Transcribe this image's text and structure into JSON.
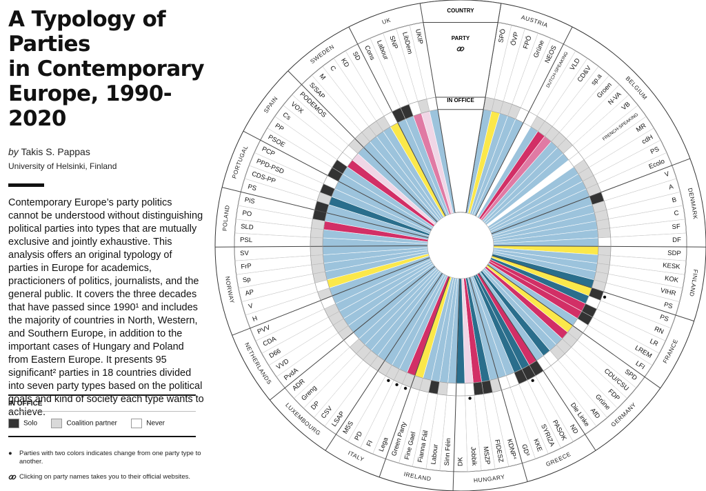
{
  "title": "A Typology of Parties\nin Contemporary\nEurope, 1990-2020",
  "byline": {
    "by": "by",
    "author": "Takis S. Pappas",
    "affiliation": "University of Helsinki, Finland"
  },
  "intro": "Contemporary Europe’s party politics cannot be understood without distinguishing political parties into types that are mutually exclusive and jointly exhaustive. This analysis offers an original typology of parties in Europe for academics, practicioners of politics, journalists, and the general public. It covers the three decades that have passed since 1990¹ and includes the majority of countries in North, Western, and Southern Europe, in addition to the important cases of Hungary and Poland from Eastern Europe. It presents 95 significant² parties in 18 countries divided into seven party types based on the political goals and kind of society each type wants to achieve.",
  "legend": {
    "title": "IN OFFICE",
    "items": [
      {
        "label": "Solo",
        "color": "#333333"
      },
      {
        "label": "Coalition partner",
        "color": "#d9d9d9"
      },
      {
        "label": "Never",
        "color": "#ffffff"
      }
    ]
  },
  "notes": [
    {
      "marker": "●",
      "text": "Parties with two colors indicates change from one party type to another."
    },
    {
      "marker": "link-icon",
      "text": "Clicking on party names takes you to their official websites."
    }
  ],
  "center_labels": {
    "country": "COUNTRY",
    "party": "PARTY",
    "office": "IN OFFICE"
  },
  "colors": {
    "blue": "#9cc3dc",
    "teal": "#2a6e8c",
    "yellow": "#fbe84a",
    "magenta": "#d22f66",
    "pink": "#e07aa4",
    "lightpink": "#f0d6e6",
    "solo": "#333333",
    "coalition": "#d9d9d9",
    "never": "#ffffff"
  },
  "countries": [
    {
      "name": "AUSTRIA",
      "parties": [
        {
          "name": "SPÖ",
          "type": "blue",
          "office": "coalition"
        },
        {
          "name": "ÖVP",
          "type": "yellow",
          "office": "coalition"
        },
        {
          "name": "FPÖ",
          "type": "blue",
          "office": "coalition"
        },
        {
          "name": "Grüne",
          "type": "blue",
          "office": "coalition"
        },
        {
          "name": "NEOS",
          "type": "blue",
          "office": "never"
        }
      ]
    },
    {
      "name": "BELGIUM",
      "parties": [
        {
          "name": "DUTCH-SPEAKING",
          "subheader": true
        },
        {
          "name": "VLD",
          "type": "blue",
          "office": "coalition"
        },
        {
          "name": "CD&V",
          "type": "magenta",
          "office": "coalition"
        },
        {
          "name": "sp.a",
          "type": "pink",
          "office": "coalition"
        },
        {
          "name": "Groen",
          "type": "blue",
          "office": "coalition"
        },
        {
          "name": "N-VA",
          "type": "blue",
          "office": "coalition"
        },
        {
          "name": "VB",
          "type": "blue",
          "office": "never"
        },
        {
          "name": "FRENCH-SPEAKING",
          "subheader": true
        },
        {
          "name": "MR",
          "type": "blue",
          "office": "coalition"
        },
        {
          "name": "cdH",
          "type": "blue",
          "office": "coalition"
        },
        {
          "name": "PS",
          "type": "blue",
          "office": "coalition"
        },
        {
          "name": "Ecolo",
          "type": "blue",
          "office": "coalition"
        }
      ]
    },
    {
      "name": "DENMARK",
      "parties": [
        {
          "name": "V",
          "type": "blue",
          "office": "solo"
        },
        {
          "name": "A",
          "type": "blue",
          "office": "coalition"
        },
        {
          "name": "B",
          "type": "blue",
          "office": "coalition"
        },
        {
          "name": "C",
          "type": "blue",
          "office": "coalition"
        },
        {
          "name": "SF",
          "type": "blue",
          "office": "coalition"
        },
        {
          "name": "DF",
          "type": "blue",
          "office": "never"
        }
      ]
    },
    {
      "name": "FINLAND",
      "parties": [
        {
          "name": "SDP",
          "type": "yellow",
          "office": "coalition"
        },
        {
          "name": "KESK",
          "type": "blue",
          "office": "coalition"
        },
        {
          "name": "KOK",
          "type": "blue",
          "office": "coalition"
        },
        {
          "name": "VIHR",
          "type": "blue",
          "office": "coalition"
        },
        {
          "name": "PS",
          "type": "teal",
          "office": "coalition"
        }
      ]
    },
    {
      "name": "FRANCE",
      "parties": [
        {
          "name": "PS",
          "type": "yellow",
          "office": "solo",
          "dot": true
        },
        {
          "name": "RN",
          "type": "teal",
          "office": "never"
        },
        {
          "name": "LR",
          "type": "magenta",
          "office": "solo"
        },
        {
          "name": "LREM",
          "type": "magenta",
          "office": "solo"
        },
        {
          "name": "LFI",
          "type": "blue",
          "office": "never"
        }
      ]
    },
    {
      "name": "GERMANY",
      "parties": [
        {
          "name": "SPD",
          "type": "yellow",
          "office": "coalition"
        },
        {
          "name": "CDU/CSU",
          "type": "magenta",
          "office": "coalition"
        },
        {
          "name": "FDP",
          "type": "blue",
          "office": "coalition"
        },
        {
          "name": "Grüne",
          "type": "blue",
          "office": "coalition"
        },
        {
          "name": "AfD",
          "type": "teal",
          "office": "never"
        },
        {
          "name": "Die Linke",
          "type": "blue",
          "office": "never"
        }
      ]
    },
    {
      "name": "GREECE",
      "parties": [
        {
          "name": "ND",
          "type": "magenta",
          "office": "solo"
        },
        {
          "name": "PASOK",
          "type": "teal",
          "office": "solo",
          "dot": true
        },
        {
          "name": "SYRIZA",
          "type": "teal",
          "office": "solo"
        },
        {
          "name": "KKE",
          "type": "blue",
          "office": "never"
        },
        {
          "name": "GD³",
          "type": "blue",
          "office": "never"
        }
      ]
    },
    {
      "name": "HUNGARY",
      "parties": [
        {
          "name": "KDNP⁴",
          "type": "blue",
          "office": "coalition"
        },
        {
          "name": "FIDESZ",
          "type": "teal",
          "office": "solo"
        },
        {
          "name": "MSZP",
          "type": "magenta",
          "office": "solo"
        },
        {
          "name": "Jobbik",
          "type": "lightpink",
          "office": "never",
          "dot": true
        },
        {
          "name": "DK",
          "type": "teal",
          "office": "never"
        }
      ]
    },
    {
      "name": "IRELAND",
      "parties": [
        {
          "name": "Sinn Féin",
          "type": "blue",
          "office": "never"
        },
        {
          "name": "Labour",
          "type": "blue",
          "office": "coalition"
        },
        {
          "name": "Fianna Fáil",
          "type": "blue",
          "office": "solo"
        },
        {
          "name": "Fine Gael",
          "type": "blue",
          "office": "coalition"
        },
        {
          "name": "Green Party",
          "type": "yellow",
          "office": "coalition"
        }
      ]
    },
    {
      "name": "ITALY",
      "parties": [
        {
          "name": "Lega",
          "type": "magenta",
          "office": "coalition",
          "dot": true
        },
        {
          "name": "FI",
          "type": "blue",
          "office": "coalition",
          "dot": true
        },
        {
          "name": "PD",
          "type": "blue",
          "office": "coalition",
          "dot": true
        },
        {
          "name": "M5S",
          "type": "blue",
          "office": "coalition"
        }
      ]
    },
    {
      "name": "LUXEMBOURG",
      "parties": [
        {
          "name": "LSAP",
          "type": "blue",
          "office": "coalition"
        },
        {
          "name": "CSV",
          "type": "blue",
          "office": "coalition"
        },
        {
          "name": "DP",
          "type": "blue",
          "office": "coalition"
        },
        {
          "name": "Greng",
          "type": "blue",
          "office": "coalition"
        },
        {
          "name": "ADR",
          "type": "blue",
          "office": "never"
        }
      ]
    },
    {
      "name": "NETHERLANDS",
      "parties": [
        {
          "name": "PvdA",
          "type": "blue",
          "office": "coalition"
        },
        {
          "name": "VVD",
          "type": "blue",
          "office": "coalition"
        },
        {
          "name": "D66",
          "type": "blue",
          "office": "coalition"
        },
        {
          "name": "CDA",
          "type": "blue",
          "office": "coalition"
        },
        {
          "name": "PVV",
          "type": "blue",
          "office": "never"
        }
      ]
    },
    {
      "name": "NORWAY",
      "parties": [
        {
          "name": "H",
          "type": "blue",
          "office": "coalition"
        },
        {
          "name": "V",
          "type": "yellow",
          "office": "never"
        },
        {
          "name": "AP",
          "type": "blue",
          "office": "coalition"
        },
        {
          "name": "Sp",
          "type": "blue",
          "office": "coalition"
        },
        {
          "name": "FrP",
          "type": "blue",
          "office": "coalition"
        },
        {
          "name": "SV",
          "type": "blue",
          "office": "coalition"
        }
      ]
    },
    {
      "name": "POLAND",
      "parties": [
        {
          "name": "PSL",
          "type": "blue",
          "office": "coalition"
        },
        {
          "name": "SLD",
          "type": "blue",
          "office": "coalition"
        },
        {
          "name": "PO",
          "type": "magenta",
          "office": "coalition"
        },
        {
          "name": "PiS",
          "type": "blue",
          "office": "solo"
        }
      ]
    },
    {
      "name": "PORTUGAL",
      "parties": [
        {
          "name": "PS",
          "type": "blue",
          "office": "solo"
        },
        {
          "name": "CDS-PP",
          "type": "teal",
          "office": "coalition"
        },
        {
          "name": "PPD-PSD",
          "type": "blue",
          "office": "solo"
        },
        {
          "name": "PCP",
          "type": "blue",
          "office": "never"
        }
      ]
    },
    {
      "name": "SPAIN",
      "parties": [
        {
          "name": "PSOE",
          "type": "blue",
          "office": "solo"
        },
        {
          "name": "PP",
          "type": "blue",
          "office": "solo"
        },
        {
          "name": "Cs",
          "type": "magenta",
          "office": "never"
        },
        {
          "name": "VOX",
          "type": "lightpink",
          "office": "never"
        },
        {
          "name": "PODEMOS",
          "type": "blue",
          "office": "coalition"
        }
      ]
    },
    {
      "name": "SWEDEN",
      "parties": [
        {
          "name": "S/SAP",
          "type": "blue",
          "office": "coalition"
        },
        {
          "name": "M",
          "type": "blue",
          "office": "coalition"
        },
        {
          "name": "C",
          "type": "blue",
          "office": "coalition"
        },
        {
          "name": "KD",
          "type": "blue",
          "office": "coalition"
        },
        {
          "name": "SD",
          "type": "yellow",
          "office": "never"
        }
      ]
    },
    {
      "name": "UK",
      "parties": [
        {
          "name": "Cons",
          "type": "blue",
          "office": "solo"
        },
        {
          "name": "Labour",
          "type": "blue",
          "office": "solo"
        },
        {
          "name": "SNP",
          "type": "pink",
          "office": "never"
        },
        {
          "name": "LibDem",
          "type": "lightpink",
          "office": "coalition"
        },
        {
          "name": "UKIP",
          "type": "blue",
          "office": "never"
        }
      ]
    }
  ]
}
